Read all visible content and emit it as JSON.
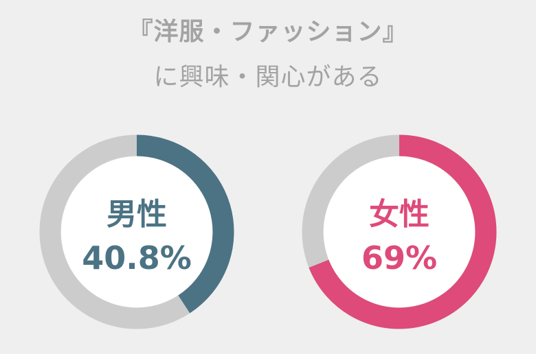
{
  "title": {
    "line1": "『洋服・ファッション』",
    "line2": "に興味・関心がある"
  },
  "colors": {
    "background": "#efefef",
    "track": "#cccccc",
    "male": "#4b7384",
    "female": "#de4a7a",
    "title_text": "#a3a3a3"
  },
  "chart_data": [
    {
      "type": "pie",
      "label": "男性",
      "value_text": "40.8%",
      "value": 40.8,
      "color": "#4b7384"
    },
    {
      "type": "pie",
      "label": "女性",
      "value_text": "69%",
      "value": 69,
      "color": "#de4a7a"
    }
  ]
}
